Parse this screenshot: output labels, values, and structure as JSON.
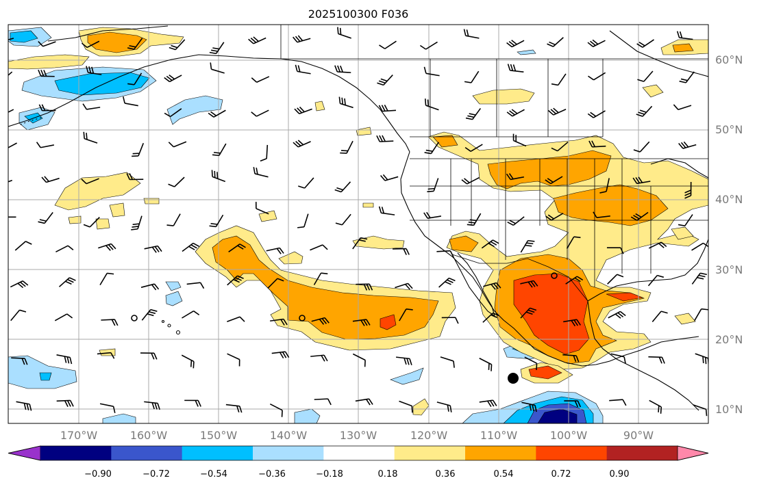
{
  "title": "2025100300 F036",
  "lon_ticks": [
    "170°W",
    "160°W",
    "150°W",
    "140°W",
    "130°W",
    "120°W",
    "110°W",
    "100°W",
    "90°W"
  ],
  "lat_ticks": [
    "60°N",
    "50°N",
    "40°N",
    "30°N",
    "20°N",
    "10°N"
  ],
  "colorbar": {
    "colors": [
      "#9932cc",
      "#000080",
      "#3a56cc",
      "#00bfff",
      "#aadfff",
      "#ffffff",
      "#ffeb8a",
      "#ffa500",
      "#ff4500",
      "#b22222",
      "#ff88aa"
    ],
    "tick_labels": [
      "−0.90",
      "−0.72",
      "−0.54",
      "−0.36",
      "−0.18",
      "0.18",
      "0.36",
      "0.54",
      "0.72",
      "0.90"
    ]
  },
  "palette": {
    "light_yellow": "#ffeb8a",
    "orange": "#ffa500",
    "red_orange": "#ff4500",
    "dark_red": "#b22222",
    "light_blue": "#aadfff",
    "blue": "#00bfff",
    "royal_blue": "#3a56cc",
    "navy": "#000080",
    "grid": "#a9a9a9",
    "coast": "#000000"
  }
}
